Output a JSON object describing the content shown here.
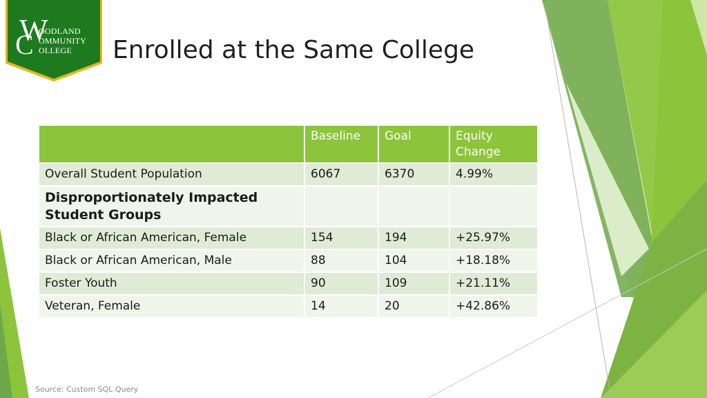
{
  "logo": {
    "lines": [
      "OODLAND",
      "OMMUNITY",
      "OLLEGE"
    ],
    "monogram": "WC"
  },
  "title": "Enrolled at the Same College",
  "table": {
    "headers": [
      "",
      "Baseline",
      "Goal",
      "Equity Change"
    ],
    "rows": [
      {
        "label": "Overall Student Population",
        "baseline": "6067",
        "goal": "6370",
        "change": "4.99%"
      },
      {
        "label": "Disproportionately Impacted Student Groups",
        "baseline": "",
        "goal": "",
        "change": "",
        "group": true
      },
      {
        "label": "Black or African American, Female",
        "baseline": "154",
        "goal": "194",
        "change": "+25.97%"
      },
      {
        "label": "Black or African American, Male",
        "baseline": "88",
        "goal": "104",
        "change": "+18.18%"
      },
      {
        "label": "Foster Youth",
        "baseline": "90",
        "goal": "109",
        "change": "+21.11%"
      },
      {
        "label": "Veteran, Female",
        "baseline": "14",
        "goal": "20",
        "change": "+42.86%"
      }
    ]
  },
  "source": "Source: Custom SQL Query",
  "colors": {
    "header_green": "#8cc43c",
    "logo_green": "#1e7a1e",
    "logo_gold": "#e9b420"
  }
}
